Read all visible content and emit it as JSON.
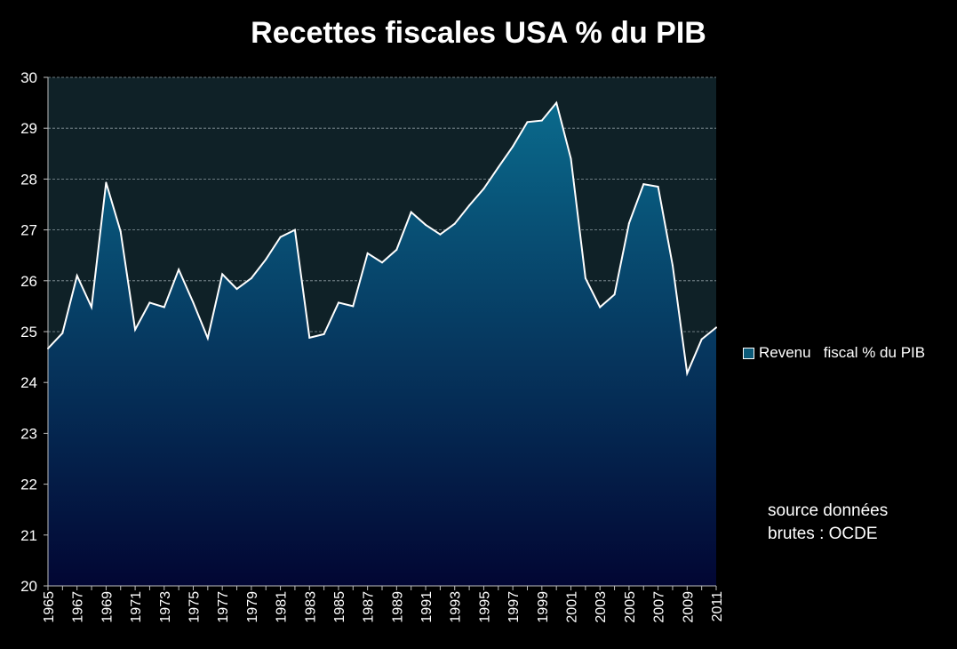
{
  "chart_data": {
    "type": "area",
    "title": "Recettes fiscales USA % du PIB",
    "xlabel": "",
    "ylabel": "",
    "ylim": [
      20,
      30
    ],
    "yticks": [
      20,
      21,
      22,
      23,
      24,
      25,
      26,
      27,
      28,
      29,
      30
    ],
    "grid": true,
    "legend_position": "right",
    "x": [
      1965,
      1966,
      1967,
      1968,
      1969,
      1970,
      1971,
      1972,
      1973,
      1974,
      1975,
      1976,
      1977,
      1978,
      1979,
      1980,
      1981,
      1982,
      1983,
      1984,
      1985,
      1986,
      1987,
      1988,
      1989,
      1990,
      1991,
      1992,
      1993,
      1994,
      1995,
      1996,
      1997,
      1998,
      1999,
      2000,
      2001,
      2002,
      2003,
      2004,
      2005,
      2006,
      2007,
      2008,
      2009,
      2010,
      2011
    ],
    "x_tick_labels": [
      "1965",
      "1967",
      "1969",
      "1971",
      "1973",
      "1975",
      "1977",
      "1979",
      "1981",
      "1983",
      "1985",
      "1987",
      "1989",
      "1991",
      "1993",
      "1995",
      "1997",
      "1999",
      "2001",
      "2003",
      "2005",
      "2007",
      "2009",
      "2011"
    ],
    "series": [
      {
        "name": "Revenu   fiscal % du PIB",
        "values": [
          24.67,
          24.97,
          26.1,
          25.48,
          27.93,
          26.97,
          25.04,
          25.57,
          25.48,
          26.22,
          25.57,
          24.87,
          26.13,
          25.84,
          26.05,
          26.42,
          26.86,
          27.0,
          24.88,
          24.95,
          25.57,
          25.5,
          26.54,
          26.36,
          26.61,
          27.35,
          27.1,
          26.91,
          27.12,
          27.48,
          27.81,
          28.23,
          28.64,
          29.12,
          29.15,
          29.5,
          28.4,
          26.05,
          25.48,
          25.73,
          27.13,
          27.9,
          27.85,
          26.3,
          24.18,
          24.85,
          25.08
        ],
        "color": "#0b5a78"
      }
    ],
    "source_note": [
      "source données",
      "brutes : OCDE"
    ]
  },
  "colors": {
    "background": "#000000",
    "plot_background": "#0f2127",
    "area_top": "#0a6a8c",
    "area_bottom": "#020633",
    "line": "#ffffff",
    "gridline": "#8c9aa0"
  }
}
